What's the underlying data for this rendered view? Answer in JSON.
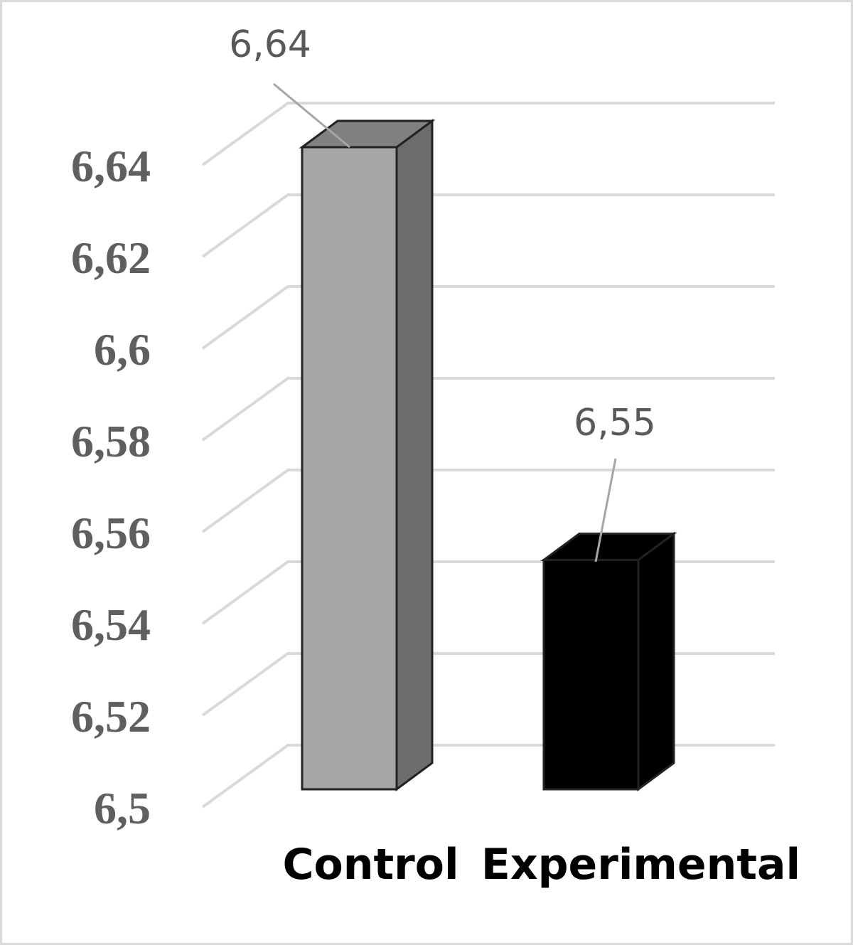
{
  "chart_data": {
    "type": "bar3d",
    "categories": [
      "Control",
      "Experimental"
    ],
    "values": [
      6.64,
      6.55
    ],
    "value_labels": [
      "6,64",
      "6,55"
    ],
    "colors": [
      "#a6a6a6",
      "#000000"
    ],
    "ylim": [
      6.5,
      6.64
    ],
    "yticks": [
      {
        "value": 6.5,
        "label": "6,5"
      },
      {
        "value": 6.52,
        "label": "6,52"
      },
      {
        "value": 6.54,
        "label": "6,54"
      },
      {
        "value": 6.56,
        "label": "6,56"
      },
      {
        "value": 6.58,
        "label": "6,58"
      },
      {
        "value": 6.6,
        "label": "6,6"
      },
      {
        "value": 6.62,
        "label": "6,62"
      },
      {
        "value": 6.64,
        "label": "6,64"
      }
    ],
    "grid": true
  }
}
